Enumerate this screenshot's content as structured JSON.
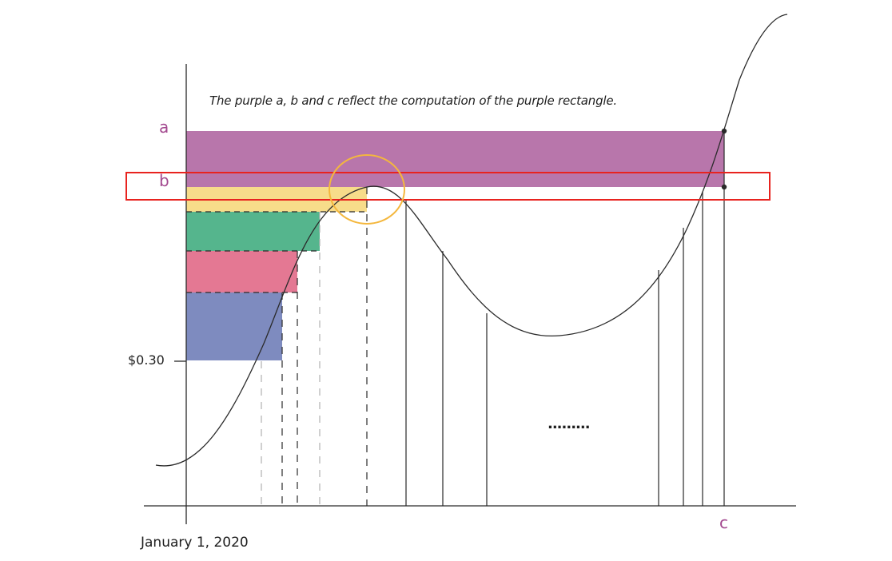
{
  "annotation": {
    "caption": "The purple a, b and c reflect the computation of the purple rectangle.",
    "letter_a": "a",
    "letter_b": "b",
    "letter_c": "c",
    "price_label": "$0.30",
    "date_label": "January 1, 2020",
    "ellipsis": "........."
  },
  "colors": {
    "purple": "#b876ab",
    "yellow": "#f7dc8a",
    "green": "#55b58d",
    "pink": "#e47893",
    "blue": "#7e8bbf",
    "letter": "#a3498f",
    "highlight_box": "#e8231f",
    "highlight_circle": "#f4b73d",
    "line": "#2a2a2a"
  }
}
